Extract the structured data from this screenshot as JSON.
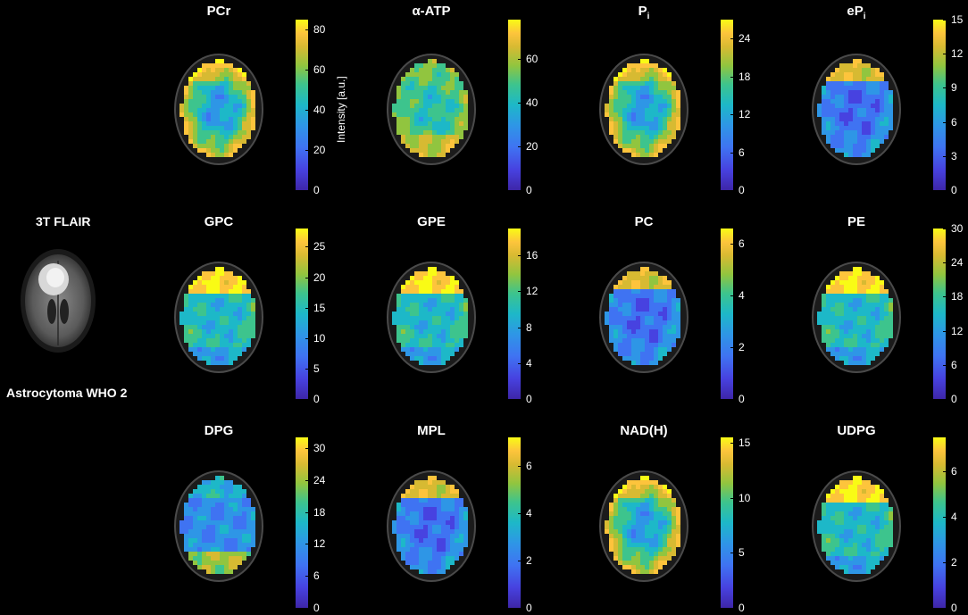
{
  "flair": {
    "title": "3T FLAIR",
    "caption": "Astrocytoma WHO 2"
  },
  "colorbar_label": "Intensity [a.u.]",
  "panels": [
    {
      "id": "pcr",
      "title": "PCr",
      "sub": "",
      "ticks": [
        "80",
        "60",
        "40",
        "20",
        "0"
      ],
      "max": 85,
      "vals": [
        80,
        60,
        40,
        20,
        0
      ],
      "pattern": "rim-high"
    },
    {
      "id": "atp",
      "title": "α-ATP",
      "sub": "",
      "ticks": [
        "60",
        "40",
        "20",
        "0"
      ],
      "max": 78,
      "vals": [
        60,
        40,
        20,
        0
      ],
      "pattern": "uniform-mid"
    },
    {
      "id": "pi",
      "title": "P",
      "sub": "i",
      "ticks": [
        "24",
        "18",
        "12",
        "6",
        "0"
      ],
      "max": 27,
      "vals": [
        24,
        18,
        12,
        6,
        0
      ],
      "pattern": "rim-high"
    },
    {
      "id": "epi",
      "title": "eP",
      "sub": "i",
      "ticks": [
        "15",
        "12",
        "9",
        "6",
        "3",
        "0"
      ],
      "max": 15,
      "vals": [
        15,
        12,
        9,
        6,
        3,
        0
      ],
      "pattern": "low-front"
    },
    {
      "id": "gpc",
      "title": "GPC",
      "sub": "",
      "ticks": [
        "25",
        "20",
        "15",
        "10",
        "5",
        "0"
      ],
      "max": 28,
      "vals": [
        25,
        20,
        15,
        10,
        5,
        0
      ],
      "pattern": "front-high"
    },
    {
      "id": "gpe",
      "title": "GPE",
      "sub": "",
      "ticks": [
        "16",
        "12",
        "8",
        "4",
        "0"
      ],
      "max": 19,
      "vals": [
        16,
        12,
        8,
        4,
        0
      ],
      "pattern": "front-high"
    },
    {
      "id": "pc",
      "title": "PC",
      "sub": "",
      "ticks": [
        "6",
        "4",
        "2",
        "0"
      ],
      "max": 6.6,
      "vals": [
        6,
        4,
        2,
        0
      ],
      "pattern": "low-front"
    },
    {
      "id": "pe",
      "title": "PE",
      "sub": "",
      "ticks": [
        "30",
        "24",
        "18",
        "12",
        "6",
        "0"
      ],
      "max": 30,
      "vals": [
        30,
        24,
        18,
        12,
        6,
        0
      ],
      "pattern": "front-high"
    },
    {
      "id": "dpg",
      "title": "DPG",
      "sub": "",
      "ticks": [
        "30",
        "24",
        "18",
        "12",
        "6",
        "0"
      ],
      "max": 32,
      "vals": [
        30,
        24,
        18,
        12,
        6,
        0
      ],
      "pattern": "back-high"
    },
    {
      "id": "mpl",
      "title": "MPL",
      "sub": "",
      "ticks": [
        "6",
        "4",
        "2",
        "0"
      ],
      "max": 7.2,
      "vals": [
        6,
        4,
        2,
        0
      ],
      "pattern": "low-front"
    },
    {
      "id": "nadh",
      "title": "NAD(H)",
      "sub": "",
      "ticks": [
        "15",
        "10",
        "5",
        "0"
      ],
      "max": 15.5,
      "vals": [
        15,
        10,
        5,
        0
      ],
      "pattern": "rim-high"
    },
    {
      "id": "udpg",
      "title": "UDPG",
      "sub": "",
      "ticks": [
        "6",
        "4",
        "2",
        "0"
      ],
      "max": 7.5,
      "vals": [
        6,
        4,
        2,
        0
      ],
      "pattern": "front-high"
    }
  ]
}
